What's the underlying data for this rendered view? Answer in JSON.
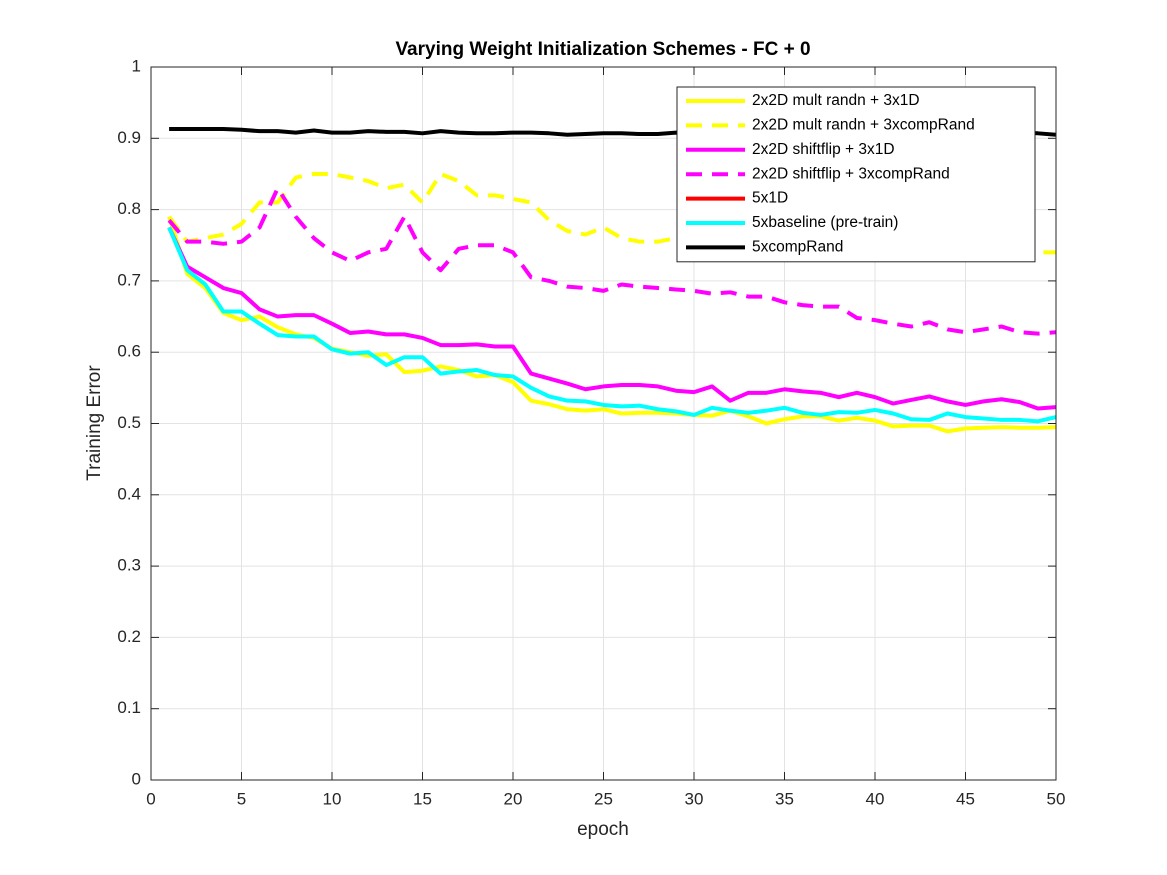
{
  "chart_data": {
    "type": "line",
    "title": "Varying Weight Initialization Schemes - FC + 0",
    "xlabel": "epoch",
    "ylabel": "Training Error",
    "x": [
      1,
      2,
      3,
      4,
      5,
      6,
      7,
      8,
      9,
      10,
      11,
      12,
      13,
      14,
      15,
      16,
      17,
      18,
      19,
      20,
      21,
      22,
      23,
      24,
      25,
      26,
      27,
      28,
      29,
      30,
      31,
      32,
      33,
      34,
      35,
      36,
      37,
      38,
      39,
      40,
      41,
      42,
      43,
      44,
      45,
      46,
      47,
      48,
      49,
      50
    ],
    "xlim": [
      0,
      50
    ],
    "xticks": [
      0,
      5,
      10,
      15,
      20,
      25,
      30,
      35,
      40,
      45,
      50
    ],
    "ylim": [
      0,
      1
    ],
    "yticks": [
      0,
      0.1,
      0.2,
      0.3,
      0.4,
      0.5,
      0.6,
      0.7,
      0.8,
      0.9,
      1
    ],
    "grid": true,
    "legend": "northeast",
    "series": [
      {
        "name": "2x2D mult randn + 3x1D",
        "color": "#ffff00",
        "dash": false,
        "values": [
          0.79,
          0.71,
          0.69,
          0.655,
          0.645,
          0.65,
          0.635,
          0.625,
          0.62,
          0.605,
          0.6,
          0.595,
          0.597,
          0.572,
          0.574,
          0.58,
          0.575,
          0.566,
          0.568,
          0.558,
          0.532,
          0.527,
          0.52,
          0.518,
          0.52,
          0.514,
          0.515,
          0.515,
          0.514,
          0.512,
          0.511,
          0.518,
          0.51,
          0.5,
          0.506,
          0.51,
          0.51,
          0.504,
          0.508,
          0.504,
          0.496,
          0.497,
          0.497,
          0.489,
          0.493,
          0.494,
          0.495,
          0.494,
          0.494,
          0.495
        ]
      },
      {
        "name": "2x2D mult randn + 3xcompRand",
        "color": "#ffff00",
        "dash": true,
        "values": [
          0.79,
          0.755,
          0.76,
          0.765,
          0.78,
          0.81,
          0.81,
          0.845,
          0.85,
          0.85,
          0.845,
          0.84,
          0.83,
          0.835,
          0.81,
          0.85,
          0.84,
          0.82,
          0.82,
          0.815,
          0.81,
          0.785,
          0.77,
          0.765,
          0.775,
          0.76,
          0.755,
          0.755,
          0.76,
          0.76,
          0.758,
          0.757,
          0.755,
          0.754,
          0.752,
          0.75,
          0.75,
          0.748,
          0.747,
          0.746,
          0.745,
          0.745,
          0.744,
          0.743,
          0.742,
          0.742,
          0.741,
          0.741,
          0.74,
          0.74
        ]
      },
      {
        "name": "2x2D shiftflip + 3x1D",
        "color": "#ff00ff",
        "dash": false,
        "values": [
          0.775,
          0.72,
          0.705,
          0.69,
          0.683,
          0.66,
          0.65,
          0.652,
          0.652,
          0.64,
          0.627,
          0.629,
          0.625,
          0.625,
          0.62,
          0.61,
          0.61,
          0.611,
          0.608,
          0.608,
          0.57,
          0.563,
          0.556,
          0.548,
          0.552,
          0.554,
          0.554,
          0.552,
          0.546,
          0.544,
          0.552,
          0.532,
          0.543,
          0.543,
          0.548,
          0.545,
          0.543,
          0.537,
          0.543,
          0.537,
          0.528,
          0.533,
          0.538,
          0.531,
          0.526,
          0.531,
          0.534,
          0.53,
          0.521,
          0.523
        ]
      },
      {
        "name": "2x2D shiftflip + 3xcompRand",
        "color": "#ff00ff",
        "dash": true,
        "values": [
          0.785,
          0.755,
          0.755,
          0.752,
          0.755,
          0.775,
          0.83,
          0.79,
          0.76,
          0.74,
          0.728,
          0.74,
          0.745,
          0.79,
          0.74,
          0.715,
          0.745,
          0.75,
          0.75,
          0.74,
          0.705,
          0.7,
          0.692,
          0.69,
          0.686,
          0.695,
          0.692,
          0.69,
          0.688,
          0.686,
          0.682,
          0.684,
          0.678,
          0.678,
          0.67,
          0.666,
          0.664,
          0.664,
          0.648,
          0.645,
          0.64,
          0.636,
          0.642,
          0.632,
          0.628,
          0.632,
          0.636,
          0.628,
          0.626,
          0.628
        ]
      },
      {
        "name": "5x1D",
        "color": "#ff0000",
        "dash": false,
        "values": [
          null,
          null,
          null,
          null,
          null,
          null,
          null,
          null,
          null,
          null,
          null,
          null,
          null,
          null,
          null,
          null,
          null,
          null,
          null,
          null,
          null,
          null,
          null,
          null,
          null,
          null,
          null,
          null,
          null,
          null,
          null,
          null,
          null,
          null,
          null,
          null,
          null,
          null,
          null,
          null,
          null,
          null,
          null,
          null,
          null,
          null,
          null,
          null,
          null,
          null
        ]
      },
      {
        "name": "5xbaseline (pre-train)",
        "color": "#00ffff",
        "dash": false,
        "values": [
          0.775,
          0.715,
          0.695,
          0.657,
          0.657,
          0.64,
          0.624,
          0.622,
          0.622,
          0.604,
          0.598,
          0.6,
          0.582,
          0.593,
          0.593,
          0.57,
          0.573,
          0.575,
          0.568,
          0.566,
          0.55,
          0.538,
          0.532,
          0.531,
          0.526,
          0.524,
          0.525,
          0.52,
          0.517,
          0.512,
          0.522,
          0.518,
          0.515,
          0.518,
          0.522,
          0.515,
          0.512,
          0.516,
          0.515,
          0.519,
          0.514,
          0.506,
          0.505,
          0.514,
          0.509,
          0.507,
          0.505,
          0.505,
          0.503,
          0.509
        ]
      },
      {
        "name": "5xcompRand",
        "color": "#000000",
        "dash": false,
        "values": [
          0.913,
          0.913,
          0.913,
          0.913,
          0.912,
          0.91,
          0.91,
          0.908,
          0.911,
          0.908,
          0.908,
          0.91,
          0.909,
          0.909,
          0.907,
          0.91,
          0.908,
          0.907,
          0.907,
          0.908,
          0.908,
          0.907,
          0.905,
          0.906,
          0.907,
          0.907,
          0.906,
          0.906,
          0.908,
          0.906,
          0.906,
          0.907,
          0.906,
          0.906,
          0.907,
          0.906,
          0.906,
          0.907,
          0.906,
          0.906,
          0.906,
          0.907,
          0.906,
          0.906,
          0.906,
          0.907,
          0.906,
          0.908,
          0.907,
          0.905
        ]
      }
    ]
  }
}
